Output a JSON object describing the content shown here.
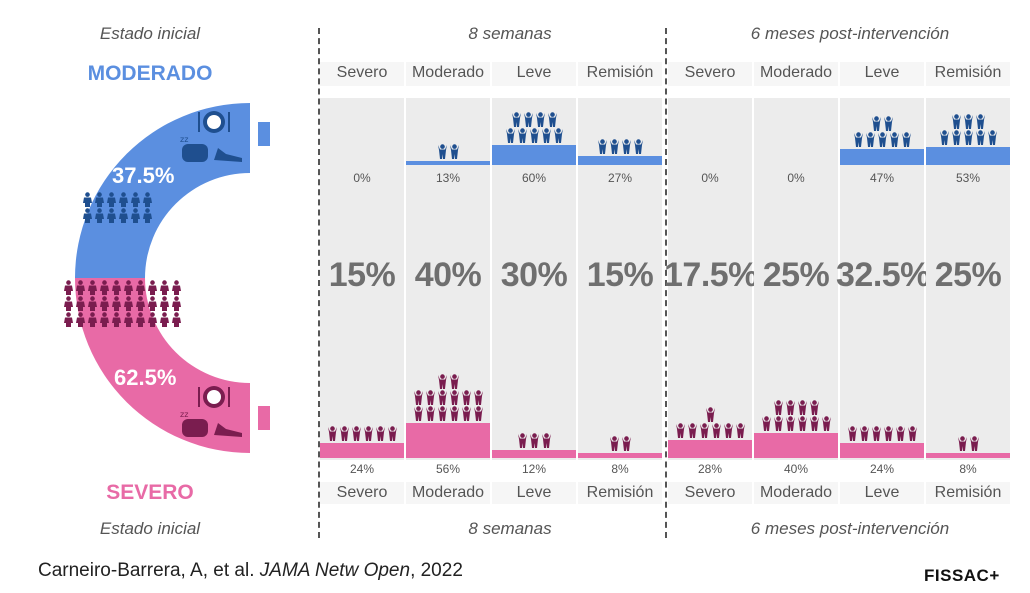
{
  "headers": {
    "initial": "Estado inicial",
    "week8": "8 semanas",
    "month6": "6 meses post-intervención"
  },
  "groups": {
    "moderate": {
      "label": "MODERADO",
      "percent": "37.5%",
      "color": "#5b8fe0"
    },
    "severe": {
      "label": "SEVERO",
      "percent": "62.5%",
      "color": "#e86aa6"
    }
  },
  "colors": {
    "moderate_icon": "#1f4f8f",
    "severe_icon": "#7a1d4f",
    "column_bg": "#ececec",
    "big_text": "#6f6f6f"
  },
  "categories": [
    "Severo",
    "Moderado",
    "Leve",
    "Remisión"
  ],
  "chart_data": {
    "type": "bar",
    "categories": [
      "Severo",
      "Moderado",
      "Leve",
      "Remisión"
    ],
    "periods": [
      "8 semanas",
      "6 meses post-intervención"
    ],
    "initial": {
      "moderate": 37.5,
      "severe": 62.5
    },
    "totals": {
      "8 semanas": [
        15,
        40,
        30,
        15
      ],
      "6 meses post-intervención": [
        17.5,
        25,
        32.5,
        25
      ]
    },
    "series": [
      {
        "name": "MODERADO",
        "period": "8 semanas",
        "values": [
          0,
          13,
          60,
          27
        ]
      },
      {
        "name": "MODERADO",
        "period": "6 meses post-intervención",
        "values": [
          0,
          0,
          47,
          53
        ]
      },
      {
        "name": "SEVERO",
        "period": "8 semanas",
        "values": [
          24,
          56,
          12,
          8
        ]
      },
      {
        "name": "SEVERO",
        "period": "6 meses post-intervención",
        "values": [
          28,
          40,
          24,
          8
        ]
      }
    ],
    "totals_labels": {
      "8 semanas": [
        "15%",
        "40%",
        "30%",
        "15%"
      ],
      "6 meses post-intervención": [
        "17.5%",
        "25%",
        "32.5%",
        "25%"
      ]
    },
    "pct_labels": {
      "MODERADO": {
        "8 semanas": [
          "0%",
          "13%",
          "60%",
          "27%"
        ],
        "6 meses post-intervención": [
          "0%",
          "0%",
          "47%",
          "53%"
        ]
      },
      "SEVERO": {
        "8 semanas": [
          "24%",
          "56%",
          "12%",
          "8%"
        ],
        "6 meses post-intervención": [
          "28%",
          "40%",
          "24%",
          "8%"
        ]
      }
    },
    "icon_counts": {
      "MODERADO": {
        "8 semanas": [
          0,
          2,
          9,
          4
        ],
        "6 meses post-intervención": [
          0,
          0,
          7,
          8
        ]
      },
      "SEVERO": {
        "8 semanas": [
          6,
          14,
          3,
          2
        ],
        "6 meses post-intervención": [
          7,
          10,
          6,
          2
        ]
      }
    }
  },
  "citation": {
    "authors": "Carneiro-Barrera, A, et al. ",
    "journal": "JAMA Netw Open",
    "year": ", 2022"
  },
  "logo": "FISSAC+"
}
